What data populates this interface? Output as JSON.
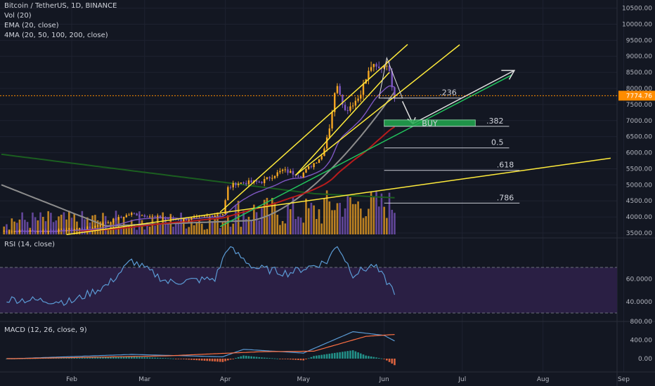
{
  "header": {
    "symbol_line": "Bitcoin / TetherUS, 1D, BINANCE",
    "vol_label": "Vol (20)",
    "ema_label": "EMA (20, close)",
    "ma_label": "4MA (20, 50, 100, 200, close)"
  },
  "rsi_label": "RSI (14, close)",
  "macd_label": "MACD (12, 26, close, 9)",
  "last_price_label": "7774.76",
  "buy_label": "BUY",
  "colors": {
    "background": "#131722",
    "up_candle": "#f5a623",
    "down_candle": "#7e57c2",
    "price_line": "#ff8c00",
    "trendline": "#ffeb3b",
    "ema20": "#7e57c2",
    "ma50": "#b71c1c",
    "ma100": "#8d8d8d",
    "ma200": "#1b5e20",
    "green_trend": "#22c55e",
    "rsi_line": "#5b9bd5",
    "rsi_band": "#2a1f44",
    "macd_line": "#5b9bd5",
    "signal_line": "#ff7043"
  },
  "chart_data": [
    {
      "type": "candlestick",
      "symbol": "Bitcoin / TetherUS",
      "timeframe": "1D",
      "exchange": "BINANCE",
      "y_ticks": [
        3500,
        4000,
        4500,
        5000,
        5500,
        6000,
        6500,
        7000,
        7500,
        8000,
        8500,
        9000,
        9500,
        10000,
        10500
      ],
      "y_tick_labels": [
        "3500.00",
        "4000.00",
        "4500.00",
        "5000.00",
        "5500.00",
        "6000.00",
        "6500.00",
        "7000.00",
        "7500.00",
        "8000.00",
        "8500.00",
        "9000.00",
        "9500.00",
        "10000.00",
        "10500.00"
      ],
      "ylim": [
        3500,
        10600
      ],
      "x_tick_labels": [
        "Feb",
        "Mar",
        "Apr",
        "May",
        "Jun",
        "Jul",
        "Aug",
        "Sep"
      ],
      "last_price": 7774.76,
      "fib_levels": [
        {
          "label": ".236",
          "value": 7700
        },
        {
          "label": ".382",
          "value": 6820
        },
        {
          "label": "0.5",
          "value": 6150
        },
        {
          "label": ".618",
          "value": 5450
        },
        {
          "label": ".786",
          "value": 4430
        }
      ],
      "key_points": [
        {
          "date": "2019-01-23",
          "close": 3560
        },
        {
          "date": "2019-02-08",
          "close": 3660
        },
        {
          "date": "2019-02-24",
          "close": 4100
        },
        {
          "date": "2019-03-15",
          "close": 3900
        },
        {
          "date": "2019-03-31",
          "close": 4100
        },
        {
          "date": "2019-04-02",
          "close": 4900
        },
        {
          "date": "2019-04-05",
          "close": 5050
        },
        {
          "date": "2019-04-15",
          "close": 5100
        },
        {
          "date": "2019-04-23",
          "close": 5450
        },
        {
          "date": "2019-04-30",
          "close": 5300
        },
        {
          "date": "2019-05-08",
          "close": 5900
        },
        {
          "date": "2019-05-11",
          "close": 6800
        },
        {
          "date": "2019-05-13",
          "close": 7800
        },
        {
          "date": "2019-05-14",
          "close": 8150
        },
        {
          "date": "2019-05-17",
          "close": 7300
        },
        {
          "date": "2019-05-22",
          "close": 7700
        },
        {
          "date": "2019-05-27",
          "close": 8700
        },
        {
          "date": "2019-05-30",
          "close": 8600
        },
        {
          "date": "2019-06-02",
          "close": 8800
        },
        {
          "date": "2019-06-05",
          "close": 7780
        }
      ],
      "volume_note": "Vol (20)"
    },
    {
      "type": "line",
      "name": "RSI (14, close)",
      "y_ticks": [
        40,
        60
      ],
      "y_tick_labels": [
        "40.0000",
        "60.0000"
      ],
      "bands": [
        30,
        70
      ],
      "ylim": [
        25,
        95
      ],
      "key_points": [
        {
          "date": "2019-01-10",
          "value": 42
        },
        {
          "date": "2019-02-01",
          "value": 40
        },
        {
          "date": "2019-02-15",
          "value": 55
        },
        {
          "date": "2019-02-24",
          "value": 76
        },
        {
          "date": "2019-03-10",
          "value": 57
        },
        {
          "date": "2019-03-28",
          "value": 60
        },
        {
          "date": "2019-04-02",
          "value": 88
        },
        {
          "date": "2019-04-12",
          "value": 70
        },
        {
          "date": "2019-04-25",
          "value": 65
        },
        {
          "date": "2019-05-10",
          "value": 75
        },
        {
          "date": "2019-05-14",
          "value": 90
        },
        {
          "date": "2019-05-20",
          "value": 64
        },
        {
          "date": "2019-05-28",
          "value": 72
        },
        {
          "date": "2019-06-05",
          "value": 49
        }
      ]
    },
    {
      "type": "line",
      "name": "MACD (12, 26, close, 9)",
      "y_ticks": [
        0,
        400,
        800
      ],
      "y_tick_labels": [
        "0.00",
        "400.00",
        "800.00"
      ],
      "ylim": [
        -120,
        830
      ],
      "macd_key_points": [
        {
          "date": "2019-01-10",
          "value": 0
        },
        {
          "date": "2019-02-24",
          "value": 90
        },
        {
          "date": "2019-03-31",
          "value": 40
        },
        {
          "date": "2019-04-08",
          "value": 200
        },
        {
          "date": "2019-05-01",
          "value": 120
        },
        {
          "date": "2019-05-20",
          "value": 580
        },
        {
          "date": "2019-06-01",
          "value": 500
        },
        {
          "date": "2019-06-05",
          "value": 380
        }
      ],
      "signal_key_points": [
        {
          "date": "2019-01-10",
          "value": 0
        },
        {
          "date": "2019-03-10",
          "value": 60
        },
        {
          "date": "2019-04-15",
          "value": 150
        },
        {
          "date": "2019-05-05",
          "value": 160
        },
        {
          "date": "2019-05-25",
          "value": 480
        },
        {
          "date": "2019-06-05",
          "value": 520
        }
      ]
    }
  ]
}
